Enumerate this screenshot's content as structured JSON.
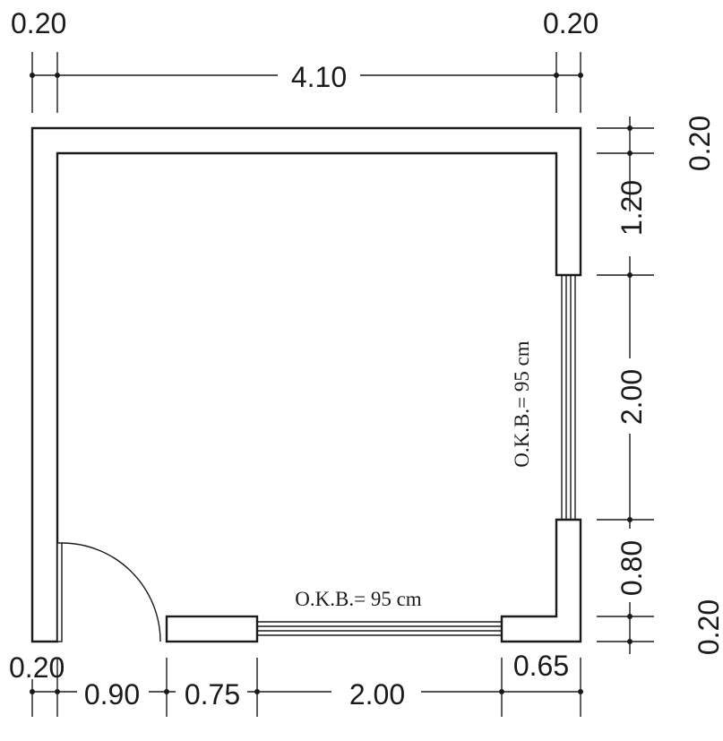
{
  "dims": {
    "top_left": "0.20",
    "top_right": "0.20",
    "top_width": "4.10",
    "right_top": "0.20",
    "right_upper": "1.20",
    "right_window": "2.00",
    "right_lower": "0.80",
    "right_bottom": "0.20",
    "bottom_wall": "0.20",
    "bottom_door": "0.90",
    "bottom_pier": "0.75",
    "bottom_window": "2.00",
    "bottom_right": "0.65"
  },
  "notes": {
    "window_right": "O.K.B.= 95 cm",
    "window_bottom": "O.K.B.= 95 cm"
  }
}
